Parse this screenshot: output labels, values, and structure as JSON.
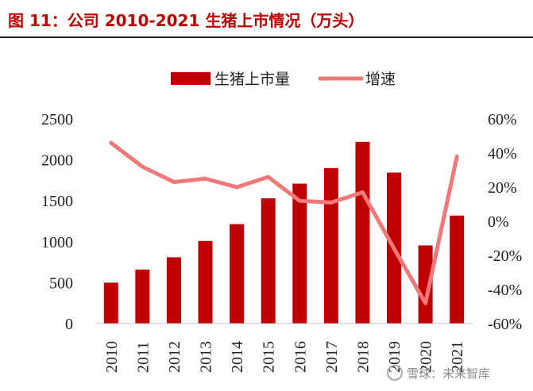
{
  "title": "图  11：公司 2010-2021 生猪上市情况（万头）",
  "watermark": "雪球：未来智库",
  "chart_data": {
    "type": "bar",
    "categories": [
      "2010",
      "2011",
      "2012",
      "2013",
      "2014",
      "2015",
      "2016",
      "2017",
      "2018",
      "2019",
      "2020",
      "2021"
    ],
    "series": [
      {
        "name": "生猪上市量",
        "type": "bar",
        "axis": "left",
        "color": "#c00000",
        "values": [
          500,
          660,
          810,
          1010,
          1215,
          1530,
          1710,
          1900,
          2220,
          1845,
          955,
          1320
        ]
      },
      {
        "name": "增速",
        "type": "line",
        "axis": "right",
        "color": "#f07878",
        "values": [
          46,
          32,
          23,
          25,
          20,
          26,
          12,
          11,
          17,
          -16,
          -48,
          38
        ]
      }
    ],
    "y_left": {
      "min": 0,
      "max": 2500,
      "ticks": [
        0,
        500,
        1000,
        1500,
        2000,
        2500
      ]
    },
    "y_right": {
      "min": -60,
      "max": 60,
      "ticks": [
        -60,
        -40,
        -20,
        0,
        20,
        40,
        60
      ],
      "unit": "%"
    },
    "legend_position": "top-center",
    "grid": false
  }
}
